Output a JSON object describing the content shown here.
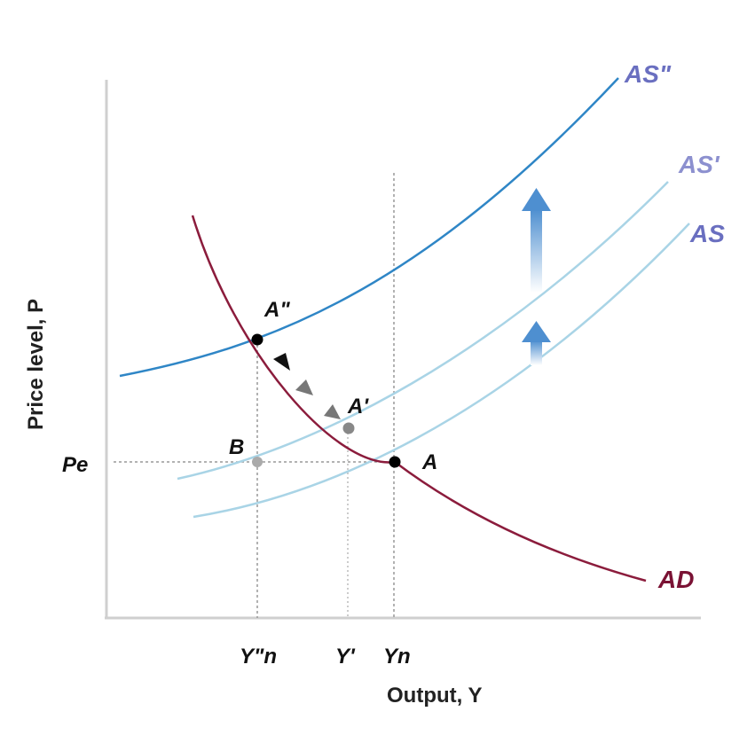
{
  "axes": {
    "y_title": "Price level, P",
    "x_title": "Output, Y"
  },
  "curves": {
    "as_double_prime": "AS\"",
    "as_prime": "AS'",
    "as": "AS",
    "ad": "AD"
  },
  "points": {
    "a_double_prime": "A\"",
    "a_prime": "A'",
    "a": "A",
    "b": "B"
  },
  "ticks": {
    "p_e": "Pe",
    "y_double_prime_n": "Y\"n",
    "y_prime": "Y'",
    "y_n": "Yn"
  },
  "colors": {
    "as_double_prime": "#2f86c6",
    "as_prime": "#a9d4e6",
    "as": "#a9d4e6",
    "ad": "#8b1c3c",
    "arrow": "#6fa3d6",
    "ad_label": "#7a1234",
    "as_label": "#6a6fc0",
    "point": "#000000",
    "point_gray": "#888888"
  }
}
